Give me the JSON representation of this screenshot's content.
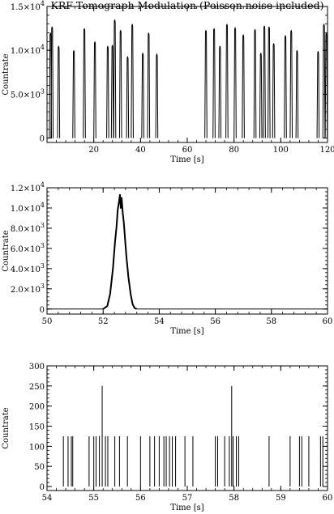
{
  "chart_data": [
    {
      "type": "line",
      "title": "KRF Tomograph Modulation (Poisson noise included)",
      "xlabel": "Time [s]",
      "ylabel": "Countrate",
      "xlim": [
        0,
        120
      ],
      "ylim": [
        -500,
        15000
      ],
      "xticks": [
        20,
        40,
        60,
        80,
        100,
        120
      ],
      "xtick_labels": [
        "20",
        "40",
        "60",
        "80",
        "100",
        "120"
      ],
      "yticks": [
        0,
        5000,
        10000,
        15000
      ],
      "ytick_labels": [
        {
          "mant": "0",
          "exp": ""
        },
        {
          "mant": "5.0×10",
          "exp": "3"
        },
        {
          "mant": "1.0×10",
          "exp": "4"
        },
        {
          "mant": "1.5×10",
          "exp": "4"
        }
      ],
      "grid": false,
      "series": [
        {
          "values_kind": "pulse_peaks",
          "x": [
            1.5,
            2.2,
            5.0,
            11.5,
            16.0,
            20.5,
            26.0,
            28.0,
            29.0,
            31.5,
            34.5,
            36.5,
            41.0,
            43.5,
            47.0,
            68.0,
            71.5,
            74.0,
            77.0,
            80.5,
            84.0,
            89.0,
            91.5,
            93.0,
            95.0,
            97.0,
            102.0,
            104.5,
            107.0,
            116.0,
            118.5,
            119.5
          ],
          "y": [
            12000,
            12700,
            10500,
            10000,
            12500,
            11000,
            10500,
            10600,
            13500,
            12300,
            9300,
            13000,
            9700,
            12000,
            9600,
            12300,
            12500,
            10500,
            13000,
            12600,
            11800,
            12400,
            9700,
            12800,
            12700,
            10800,
            11700,
            12300,
            10000,
            9900,
            13000,
            12000
          ]
        }
      ]
    },
    {
      "type": "line",
      "title": "",
      "xlabel": "Time [s]",
      "ylabel": "Countrate",
      "xlim": [
        50,
        60
      ],
      "ylim": [
        -500,
        12000
      ],
      "xticks": [
        50,
        52,
        54,
        56,
        58,
        60
      ],
      "xtick_labels": [
        "50",
        "52",
        "54",
        "56",
        "58",
        "60"
      ],
      "yticks": [
        0,
        2000,
        4000,
        6000,
        8000,
        10000,
        12000
      ],
      "ytick_labels": [
        {
          "mant": "0",
          "exp": ""
        },
        {
          "mant": "2.0×10",
          "exp": "3"
        },
        {
          "mant": "4.0×10",
          "exp": "3"
        },
        {
          "mant": "6.0×10",
          "exp": "3"
        },
        {
          "mant": "8.0×10",
          "exp": "3"
        },
        {
          "mant": "1.0×10",
          "exp": "4"
        },
        {
          "mant": "1.2×10",
          "exp": "4"
        }
      ],
      "grid": false,
      "series": [
        {
          "x": [
            52.0,
            52.15,
            52.25,
            52.35,
            52.42,
            52.48,
            52.52,
            52.56,
            52.6,
            52.63,
            52.66,
            52.7,
            52.74,
            52.78,
            52.83,
            52.9,
            52.98,
            53.05,
            53.12,
            53.2
          ],
          "y": [
            0,
            300,
            1500,
            4000,
            6500,
            8200,
            9800,
            10500,
            11300,
            10000,
            11000,
            9500,
            8500,
            7000,
            5200,
            3200,
            1500,
            500,
            100,
            0
          ]
        }
      ]
    },
    {
      "type": "bar",
      "title": "",
      "xlabel": "Time [s]",
      "ylabel": "Countrate",
      "xlim": [
        54,
        60
      ],
      "ylim": [
        -10,
        300
      ],
      "xticks": [
        54,
        55,
        56,
        57,
        58,
        59,
        60
      ],
      "xtick_labels": [
        "54",
        "55",
        "56",
        "57",
        "58",
        "59",
        "60"
      ],
      "yticks": [
        0,
        50,
        100,
        150,
        200,
        250,
        300
      ],
      "ytick_labels": [
        {
          "mant": "0",
          "exp": ""
        },
        {
          "mant": "50",
          "exp": ""
        },
        {
          "mant": "100",
          "exp": ""
        },
        {
          "mant": "150",
          "exp": ""
        },
        {
          "mant": "200",
          "exp": ""
        },
        {
          "mant": "250",
          "exp": ""
        },
        {
          "mant": "300",
          "exp": ""
        }
      ],
      "grid": false,
      "series": [
        {
          "values_kind": "event_spikes",
          "x": [
            54.35,
            54.45,
            54.52,
            54.55,
            54.9,
            55.0,
            55.05,
            55.12,
            55.18,
            55.25,
            55.3,
            55.45,
            55.55,
            55.72,
            56.0,
            56.2,
            56.3,
            56.4,
            56.5,
            56.55,
            56.62,
            56.68,
            56.75,
            56.95,
            57.12,
            57.6,
            57.65,
            57.8,
            57.9,
            57.95,
            57.98,
            58.05,
            58.1,
            58.75,
            59.2,
            59.4,
            59.45,
            59.6,
            59.85,
            59.9
          ],
          "y": [
            125,
            125,
            125,
            125,
            125,
            125,
            125,
            125,
            250,
            125,
            125,
            125,
            125,
            125,
            125,
            125,
            125,
            125,
            125,
            125,
            125,
            125,
            125,
            125,
            125,
            125,
            125,
            125,
            125,
            250,
            125,
            125,
            125,
            125,
            125,
            125,
            125,
            125,
            125,
            125
          ]
        }
      ]
    }
  ]
}
